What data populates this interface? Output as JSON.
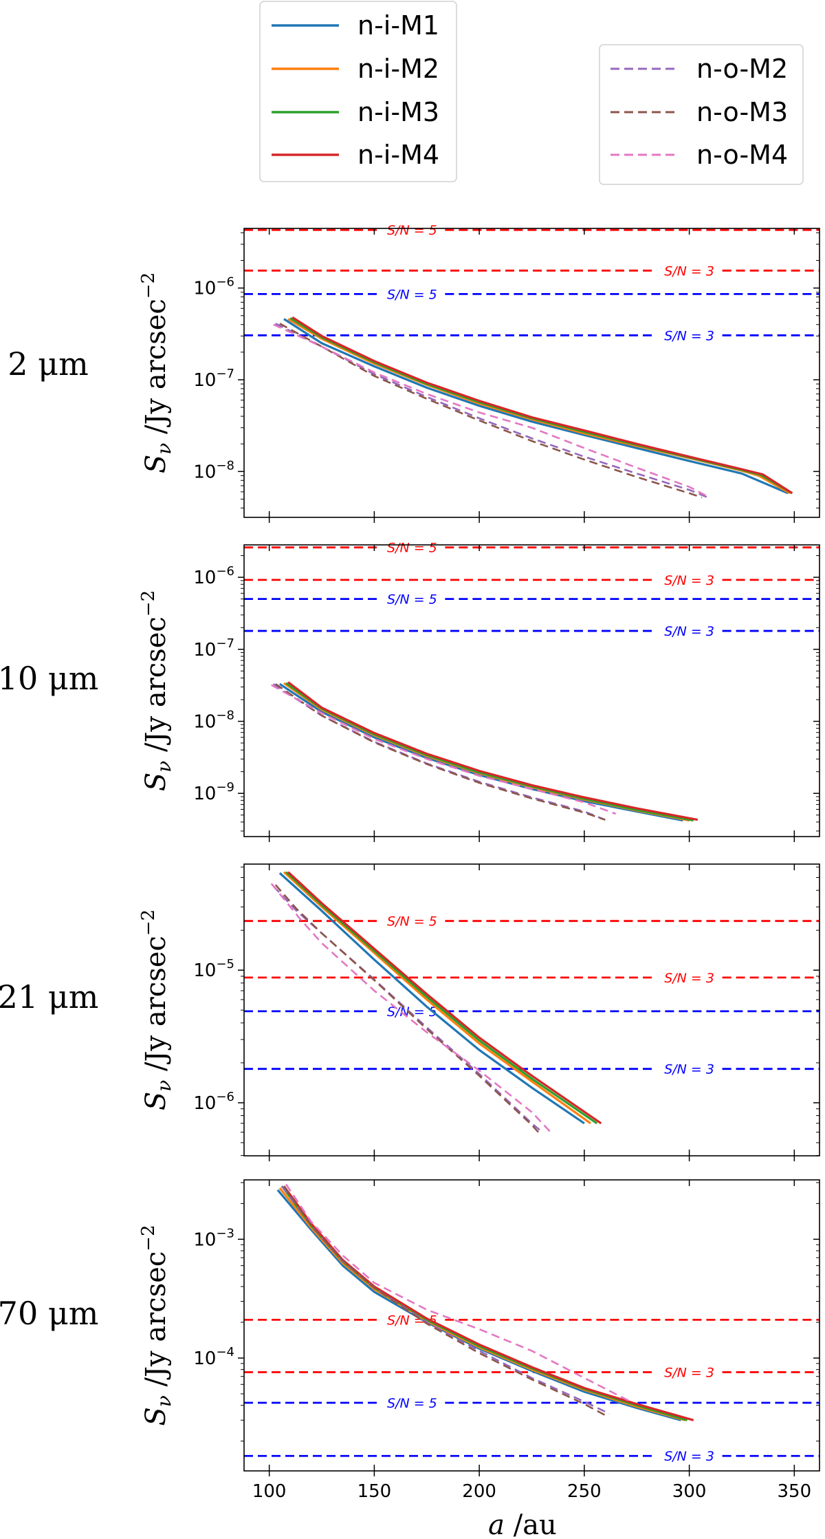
{
  "legend": {
    "solid": [
      "n-i-M1",
      "n-i-M2",
      "n-i-M3",
      "n-i-M4"
    ],
    "dashed": [
      "n-o-M2",
      "n-o-M3",
      "n-o-M4"
    ]
  },
  "colors": {
    "n-i-M1": "#1f77b4",
    "n-i-M2": "#ff7f0e",
    "n-i-M3": "#2ca02c",
    "n-i-M4": "#d62728",
    "n-o-M2": "#9467bd",
    "n-o-M3": "#8c564b",
    "n-o-M4": "#e377c2",
    "thr_red": "#ff0000",
    "thr_blue": "#0000ff"
  },
  "y_axis_label": "S_ν /Jy arcsec^−2",
  "x_axis_label": "a /au",
  "chart_data": [
    {
      "type": "line",
      "panel_label": "2 μm",
      "xlim": [
        88,
        362
      ],
      "ylog": [
        -8.5,
        -5.35
      ],
      "ymajor_ticks": [
        -8,
        -7,
        -6
      ],
      "xticks": [
        100,
        150,
        200,
        250,
        300,
        350
      ],
      "thresholds": [
        {
          "label": "S/N = 5",
          "color": "red",
          "value": 4.3e-06,
          "label_x": 168
        },
        {
          "label": "S/N = 3",
          "color": "red",
          "value": 1.55e-06,
          "label_x": 300
        },
        {
          "label": "S/N = 5",
          "color": "blue",
          "value": 8.6e-07,
          "label_x": 168
        },
        {
          "label": "S/N = 3",
          "color": "blue",
          "value": 3.05e-07,
          "label_x": 300
        }
      ],
      "series": [
        {
          "name": "n-i-M1",
          "x": [
            107,
            125,
            150,
            175,
            200,
            225,
            250,
            275,
            300,
            325,
            347
          ],
          "y": [
            4.6e-07,
            2.5e-07,
            1.4e-07,
            8.2e-08,
            5.2e-08,
            3.5e-08,
            2.5e-08,
            1.8e-08,
            1.3e-08,
            9.5e-09,
            5.8e-09
          ]
        },
        {
          "name": "n-i-M2",
          "x": [
            109,
            125,
            150,
            175,
            200,
            225,
            250,
            275,
            300,
            325,
            333,
            348
          ],
          "y": [
            4.6e-07,
            2.8e-07,
            1.5e-07,
            8.8e-08,
            5.5e-08,
            3.7e-08,
            2.6e-08,
            1.9e-08,
            1.4e-08,
            1.02e-08,
            9e-09,
            5.8e-09
          ]
        },
        {
          "name": "n-i-M3",
          "x": [
            110,
            125,
            150,
            175,
            200,
            225,
            250,
            275,
            300,
            325,
            334,
            349
          ],
          "y": [
            4.7e-07,
            2.9e-07,
            1.55e-07,
            9e-08,
            5.7e-08,
            3.8e-08,
            2.7e-08,
            1.95e-08,
            1.42e-08,
            1.04e-08,
            9.2e-09,
            5.8e-09
          ]
        },
        {
          "name": "n-i-M4",
          "x": [
            111,
            125,
            150,
            175,
            200,
            225,
            250,
            275,
            300,
            325,
            335,
            349
          ],
          "y": [
            4.8e-07,
            3e-07,
            1.6e-07,
            9.3e-08,
            5.9e-08,
            3.9e-08,
            2.8e-08,
            2e-08,
            1.45e-08,
            1.06e-08,
            9.3e-09,
            5.8e-09
          ]
        },
        {
          "name": "n-o-M2",
          "x": [
            103,
            125,
            150,
            175,
            200,
            225,
            250,
            275,
            300,
            309
          ],
          "y": [
            4.1e-07,
            2.3e-07,
            1.15e-07,
            6.5e-08,
            3.8e-08,
            2.3e-08,
            1.45e-08,
            9.5e-09,
            6.3e-09,
            5.2e-09
          ]
        },
        {
          "name": "n-o-M3",
          "x": [
            105,
            125,
            150,
            175,
            200,
            225,
            250,
            275,
            300,
            306
          ],
          "y": [
            4.1e-07,
            2.3e-07,
            1.1e-07,
            6.2e-08,
            3.6e-08,
            2.15e-08,
            1.35e-08,
            8.7e-09,
            5.8e-09,
            5.2e-09
          ]
        },
        {
          "name": "n-o-M4",
          "x": [
            102,
            125,
            150,
            175,
            200,
            225,
            250,
            275,
            300,
            309
          ],
          "y": [
            4e-07,
            2.3e-07,
            1.2e-07,
            7e-08,
            4.4e-08,
            3e-08,
            1.8e-08,
            1.1e-08,
            6.8e-09,
            5.3e-09
          ]
        }
      ]
    },
    {
      "type": "line",
      "panel_label": "10 μm",
      "xlim": [
        88,
        362
      ],
      "ylog": [
        -9.6,
        -5.55
      ],
      "ymajor_ticks": [
        -9,
        -8,
        -7,
        -6
      ],
      "xticks": [
        100,
        150,
        200,
        250,
        300,
        350
      ],
      "thresholds": [
        {
          "label": "S/N = 5",
          "color": "red",
          "value": 2.6e-06,
          "label_x": 168
        },
        {
          "label": "S/N = 3",
          "color": "red",
          "value": 9.2e-07,
          "label_x": 300
        },
        {
          "label": "S/N = 5",
          "color": "blue",
          "value": 5e-07,
          "label_x": 168
        },
        {
          "label": "S/N = 3",
          "color": "blue",
          "value": 1.8e-07,
          "label_x": 300
        }
      ],
      "series": [
        {
          "name": "n-i-M1",
          "x": [
            105,
            125,
            150,
            175,
            200,
            225,
            250,
            275,
            297
          ],
          "y": [
            3.3e-08,
            1.35e-08,
            6e-09,
            3.1e-09,
            1.8e-09,
            1.15e-09,
            7.8e-10,
            5.6e-10,
            4.2e-10
          ]
        },
        {
          "name": "n-i-M2",
          "x": [
            107,
            125,
            150,
            175,
            200,
            225,
            250,
            275,
            300
          ],
          "y": [
            3.4e-08,
            1.45e-08,
            6.4e-09,
            3.3e-09,
            1.9e-09,
            1.22e-09,
            8.2e-10,
            5.8e-10,
            4.2e-10
          ]
        },
        {
          "name": "n-i-M3",
          "x": [
            108,
            125,
            150,
            175,
            200,
            225,
            250,
            275,
            302
          ],
          "y": [
            3.4e-08,
            1.5e-08,
            6.6e-09,
            3.4e-09,
            1.95e-09,
            1.25e-09,
            8.4e-10,
            5.9e-10,
            4.2e-10
          ]
        },
        {
          "name": "n-i-M4",
          "x": [
            109,
            125,
            150,
            175,
            200,
            225,
            250,
            275,
            304
          ],
          "y": [
            3.5e-08,
            1.55e-08,
            6.9e-09,
            3.55e-09,
            2.05e-09,
            1.3e-09,
            8.8e-10,
            6.2e-10,
            4.3e-10
          ]
        },
        {
          "name": "n-o-M2",
          "x": [
            102,
            125,
            150,
            175,
            200,
            225,
            250,
            259
          ],
          "y": [
            3.3e-08,
            1.2e-08,
            5.2e-09,
            2.6e-09,
            1.45e-09,
            8.8e-10,
            5.6e-10,
            4.4e-10
          ]
        },
        {
          "name": "n-o-M3",
          "x": [
            103,
            125,
            150,
            175,
            200,
            225,
            250,
            260
          ],
          "y": [
            3.3e-08,
            1.2e-08,
            5.1e-09,
            2.55e-09,
            1.4e-09,
            8.5e-10,
            5.4e-10,
            4.3e-10
          ]
        },
        {
          "name": "n-o-M4",
          "x": [
            101,
            125,
            150,
            175,
            200,
            225,
            250,
            265
          ],
          "y": [
            3.2e-08,
            1.3e-08,
            5.7e-09,
            3e-09,
            1.75e-09,
            1.15e-09,
            7.5e-10,
            5.2e-10
          ]
        }
      ]
    },
    {
      "type": "line",
      "panel_label": "21 μm",
      "xlim": [
        88,
        362
      ],
      "ylog": [
        -6.4,
        -4.2
      ],
      "ymajor_ticks": [
        -6,
        -5
      ],
      "xticks": [
        100,
        150,
        200,
        250,
        300,
        350
      ],
      "thresholds": [
        {
          "label": "S/N = 5",
          "color": "red",
          "value": 2.35e-05,
          "label_x": 168
        },
        {
          "label": "S/N = 3",
          "color": "red",
          "value": 8.8e-06,
          "label_x": 300
        },
        {
          "label": "S/N = 5",
          "color": "blue",
          "value": 4.9e-06,
          "label_x": 168
        },
        {
          "label": "S/N = 3",
          "color": "blue",
          "value": 1.8e-06,
          "label_x": 300
        }
      ],
      "series": [
        {
          "name": "n-i-M1",
          "x": [
            105,
            125,
            150,
            175,
            200,
            225,
            250
          ],
          "y": [
            5.4e-05,
            2.8e-05,
            1.2e-05,
            5.3e-06,
            2.5e-06,
            1.3e-06,
            7e-07
          ]
        },
        {
          "name": "n-i-M2",
          "x": [
            107,
            125,
            150,
            175,
            200,
            225,
            253
          ],
          "y": [
            5.5e-05,
            3e-05,
            1.35e-05,
            6e-06,
            2.8e-06,
            1.45e-06,
            7e-07
          ]
        },
        {
          "name": "n-i-M3",
          "x": [
            108,
            125,
            150,
            175,
            200,
            225,
            256
          ],
          "y": [
            5.5e-05,
            3.1e-05,
            1.4e-05,
            6.3e-06,
            2.95e-06,
            1.52e-06,
            7e-07
          ]
        },
        {
          "name": "n-i-M4",
          "x": [
            109,
            125,
            150,
            175,
            200,
            225,
            258
          ],
          "y": [
            5.5e-05,
            3.2e-05,
            1.45e-05,
            6.6e-06,
            3.1e-06,
            1.6e-06,
            7e-07
          ]
        },
        {
          "name": "n-o-M2",
          "x": [
            102,
            113,
            125,
            150,
            175,
            200,
            225,
            230
          ],
          "y": [
            4.3e-05,
            2.8e-05,
            1.9e-05,
            8.5e-06,
            3.7e-06,
            1.65e-06,
            7e-07,
            6e-07
          ]
        },
        {
          "name": "n-o-M3",
          "x": [
            103,
            113,
            125,
            150,
            175,
            200,
            225,
            229
          ],
          "y": [
            4.4e-05,
            2.9e-05,
            1.9e-05,
            8.4e-06,
            3.6e-06,
            1.6e-06,
            6.8e-07,
            5.8e-07
          ]
        },
        {
          "name": "n-o-M4",
          "x": [
            101,
            115,
            125,
            150,
            175,
            200,
            225,
            234
          ],
          "y": [
            4.5e-05,
            2.4e-05,
            1.6e-05,
            7e-06,
            3.4e-06,
            1.75e-06,
            8.5e-07,
            6e-07
          ]
        }
      ]
    },
    {
      "type": "line",
      "panel_label": "70 μm",
      "xlim": [
        88,
        362
      ],
      "ylog": [
        -4.95,
        -2.5
      ],
      "ymajor_ticks": [
        -4,
        -3
      ],
      "xticks": [
        100,
        150,
        200,
        250,
        300,
        350
      ],
      "thresholds": [
        {
          "label": "S/N = 5",
          "color": "red",
          "value": 0.00021,
          "label_x": 168
        },
        {
          "label": "S/N = 3",
          "color": "red",
          "value": 7.6e-05,
          "label_x": 300
        },
        {
          "label": "S/N = 5",
          "color": "blue",
          "value": 4.2e-05,
          "label_x": 168
        },
        {
          "label": "S/N = 3",
          "color": "blue",
          "value": 1.5e-05,
          "label_x": 300
        }
      ],
      "series": [
        {
          "name": "n-i-M1",
          "x": [
            104,
            120,
            135,
            150,
            175,
            200,
            225,
            250,
            275,
            296
          ],
          "y": [
            0.0026,
            0.0012,
            0.0006,
            0.00036,
            0.0002,
            0.00012,
            7.8e-05,
            5.2e-05,
            3.8e-05,
            3e-05
          ]
        },
        {
          "name": "n-i-M2",
          "x": [
            105,
            120,
            135,
            150,
            175,
            200,
            225,
            250,
            275,
            298
          ],
          "y": [
            0.0027,
            0.00125,
            0.00063,
            0.00038,
            0.000205,
            0.000123,
            8e-05,
            5.4e-05,
            3.9e-05,
            3e-05
          ]
        },
        {
          "name": "n-i-M3",
          "x": [
            106,
            120,
            135,
            150,
            175,
            200,
            225,
            250,
            275,
            299
          ],
          "y": [
            0.0028,
            0.0013,
            0.00065,
            0.00039,
            0.00021,
            0.000126,
            8.2e-05,
            5.5e-05,
            4e-05,
            3e-05
          ]
        },
        {
          "name": "n-i-M4",
          "x": [
            107,
            120,
            135,
            150,
            175,
            200,
            225,
            250,
            275,
            302
          ],
          "y": [
            0.0028,
            0.00135,
            0.00067,
            0.0004,
            0.000215,
            0.00013,
            8.4e-05,
            5.6e-05,
            4.1e-05,
            3e-05
          ]
        },
        {
          "name": "n-o-M2",
          "x": [
            106,
            120,
            135,
            150,
            175,
            200,
            225,
            250,
            262
          ],
          "y": [
            0.0028,
            0.0013,
            0.00065,
            0.00039,
            0.0002,
            0.000115,
            6.8e-05,
            4.3e-05,
            3.4e-05
          ]
        },
        {
          "name": "n-o-M3",
          "x": [
            107,
            120,
            135,
            150,
            175,
            200,
            225,
            250,
            260
          ],
          "y": [
            0.0028,
            0.0013,
            0.00066,
            0.00039,
            0.000195,
            0.00011,
            6.6e-05,
            4.1e-05,
            3.3e-05
          ]
        },
        {
          "name": "n-o-M4",
          "x": [
            108,
            120,
            135,
            150,
            175,
            200,
            225,
            250,
            272
          ],
          "y": [
            0.0029,
            0.0014,
            0.00073,
            0.00043,
            0.000255,
            0.000175,
            0.000115,
            6.8e-05,
            4.3e-05
          ]
        }
      ]
    }
  ]
}
